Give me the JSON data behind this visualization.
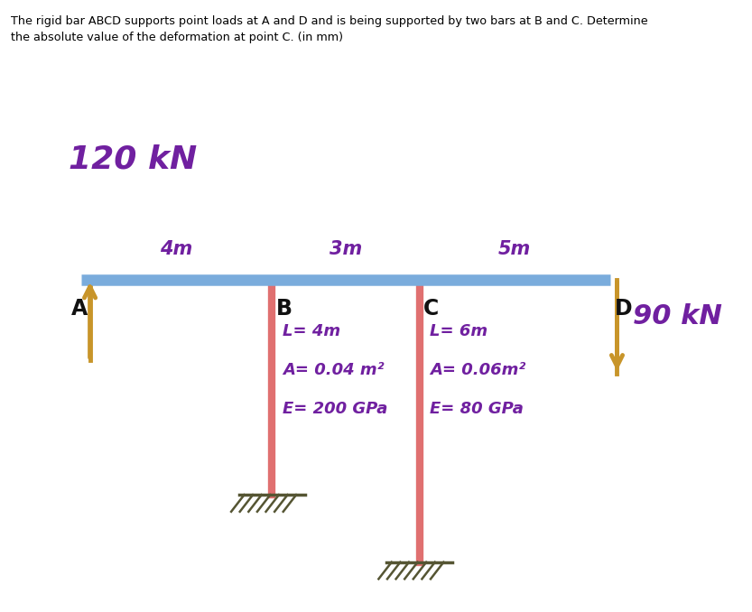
{
  "title_line1": "The rigid bar ABCD supports point loads at A and D and is being supported by two bars at B and C. Determine",
  "title_line2": "the absolute value of the deformation at point C. (in mm)",
  "load_top_label": "120 kN",
  "load_bottom_label": "90 kN",
  "dim_AB": "4m",
  "dim_BC": "3m",
  "dim_CD": "5m",
  "label_A": "A",
  "label_B": "B",
  "label_C": "C",
  "label_D": "D",
  "bar_B_L": "L= 4m",
  "bar_B_A": "A= 0.04 m²",
  "bar_B_E": "E= 200 GPa",
  "bar_C_L": "L= 6m",
  "bar_C_A": "A= 0.06m²",
  "bar_C_E": "E= 80 GPa",
  "bg_color": "#eeebe0",
  "bar_color": "#e07070",
  "rigid_bar_color": "#7aacdc",
  "arrow_color": "#c8952a",
  "text_color_purple": "#7020a0",
  "label_color": "#111111",
  "figure_bg": "#ffffff",
  "A_x": 0.85,
  "B_x": 3.05,
  "C_x": 4.75,
  "D_x": 6.95,
  "bar_y": 1.65,
  "bar_bottom_B": -1.55,
  "bar_bottom_C": -2.55,
  "xlim": [
    0.0,
    8.5
  ],
  "ylim": [
    -3.2,
    4.8
  ]
}
